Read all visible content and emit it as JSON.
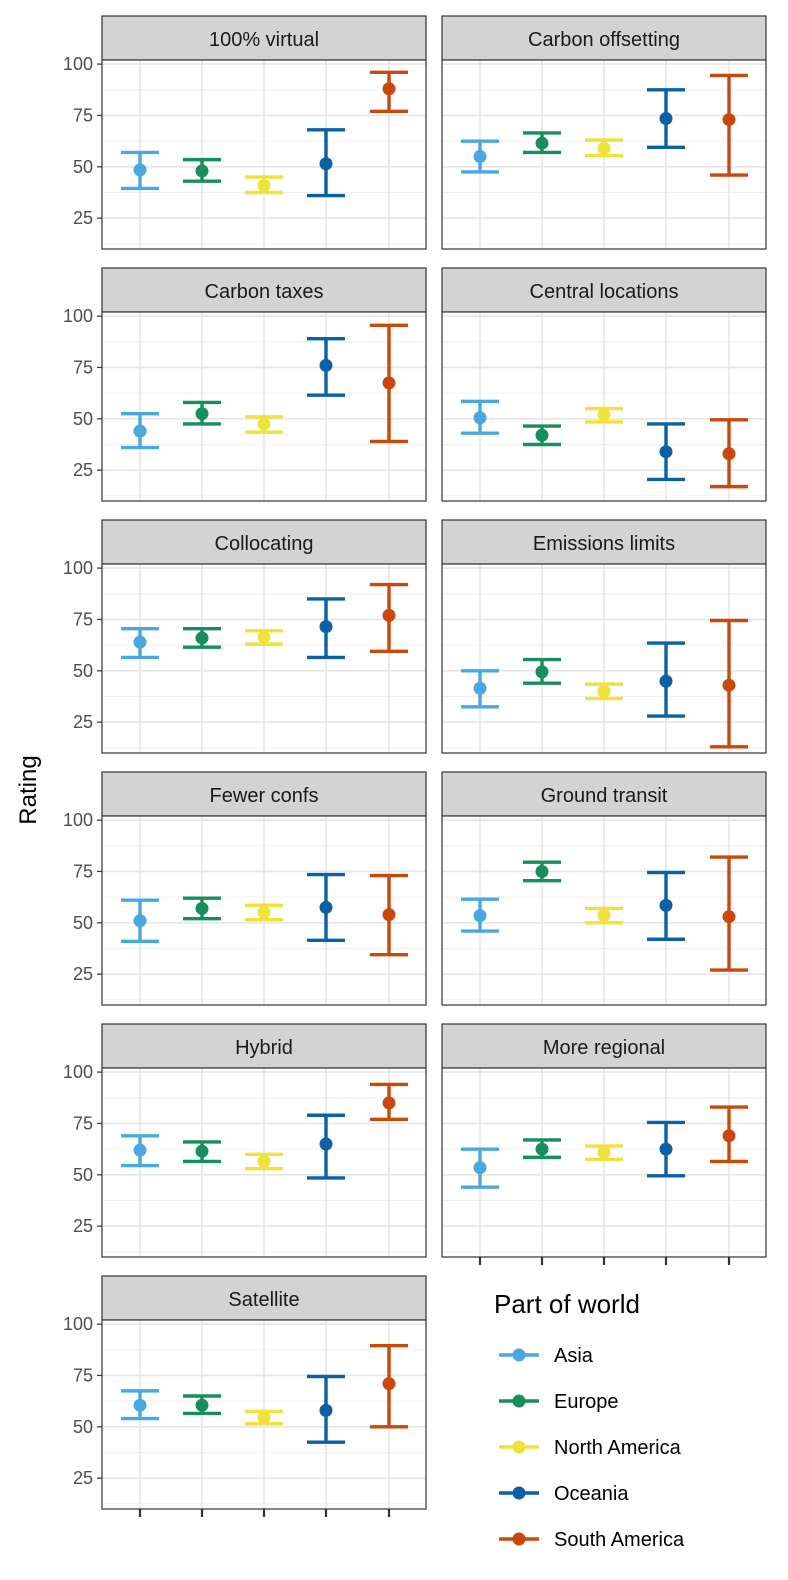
{
  "chart_data": {
    "type": "errorbar-facet",
    "ylabel": "Rating",
    "yticks": [
      25,
      50,
      75,
      100
    ],
    "ylim": [
      10,
      102
    ],
    "grid": true,
    "legend": {
      "title": "Part of world",
      "placement": "bottom-right",
      "entries": [
        "Asia",
        "Europe",
        "North America",
        "Oceania",
        "South America"
      ]
    },
    "series_colors": {
      "Asia": "#4aa7e0",
      "Europe": "#168f5d",
      "North America": "#efe23a",
      "Oceania": "#0b61a4",
      "South America": "#c9480c"
    },
    "x_categories": [
      "Asia",
      "Europe",
      "North America",
      "Oceania",
      "South America"
    ],
    "panels": [
      {
        "title": "100% virtual",
        "points": [
          {
            "group": "Asia",
            "mean": 48.5,
            "low": 39.5,
            "high": 57
          },
          {
            "group": "Europe",
            "mean": 48,
            "low": 43,
            "high": 53.5
          },
          {
            "group": "North America",
            "mean": 41,
            "low": 37.5,
            "high": 45
          },
          {
            "group": "Oceania",
            "mean": 51.5,
            "low": 36,
            "high": 68
          },
          {
            "group": "South America",
            "mean": 88,
            "low": 77,
            "high": 96
          }
        ]
      },
      {
        "title": "Carbon offsetting",
        "points": [
          {
            "group": "Asia",
            "mean": 55,
            "low": 47.5,
            "high": 62.5
          },
          {
            "group": "Europe",
            "mean": 61.5,
            "low": 57,
            "high": 66.5
          },
          {
            "group": "North America",
            "mean": 59,
            "low": 55.5,
            "high": 63
          },
          {
            "group": "Oceania",
            "mean": 73.5,
            "low": 59.5,
            "high": 87.5
          },
          {
            "group": "South America",
            "mean": 73,
            "low": 46,
            "high": 94.5
          }
        ]
      },
      {
        "title": "Carbon taxes",
        "points": [
          {
            "group": "Asia",
            "mean": 44,
            "low": 36,
            "high": 52.5
          },
          {
            "group": "Europe",
            "mean": 52.5,
            "low": 47.5,
            "high": 58
          },
          {
            "group": "North America",
            "mean": 47.5,
            "low": 43.5,
            "high": 51
          },
          {
            "group": "Oceania",
            "mean": 76,
            "low": 61.5,
            "high": 89
          },
          {
            "group": "South America",
            "mean": 67.5,
            "low": 39,
            "high": 95.5
          }
        ]
      },
      {
        "title": "Central locations",
        "points": [
          {
            "group": "Asia",
            "mean": 50.5,
            "low": 43,
            "high": 58.5
          },
          {
            "group": "Europe",
            "mean": 42,
            "low": 37.5,
            "high": 46.5
          },
          {
            "group": "North America",
            "mean": 52,
            "low": 48.5,
            "high": 55
          },
          {
            "group": "Oceania",
            "mean": 34,
            "low": 20.5,
            "high": 47.5
          },
          {
            "group": "South America",
            "mean": 33,
            "low": 17,
            "high": 49.5
          }
        ]
      },
      {
        "title": "Collocating",
        "points": [
          {
            "group": "Asia",
            "mean": 64,
            "low": 56.5,
            "high": 70.5
          },
          {
            "group": "Europe",
            "mean": 66,
            "low": 61.5,
            "high": 70.5
          },
          {
            "group": "North America",
            "mean": 66.5,
            "low": 63,
            "high": 69.5
          },
          {
            "group": "Oceania",
            "mean": 71.5,
            "low": 56.5,
            "high": 85
          },
          {
            "group": "South America",
            "mean": 77,
            "low": 59.5,
            "high": 92
          }
        ]
      },
      {
        "title": "Emissions limits",
        "points": [
          {
            "group": "Asia",
            "mean": 41.5,
            "low": 32.5,
            "high": 50
          },
          {
            "group": "Europe",
            "mean": 49.5,
            "low": 44,
            "high": 55.5
          },
          {
            "group": "North America",
            "mean": 40,
            "low": 36.5,
            "high": 43.5
          },
          {
            "group": "Oceania",
            "mean": 45,
            "low": 28,
            "high": 63.5
          },
          {
            "group": "South America",
            "mean": 43,
            "low": 13,
            "high": 74.5
          }
        ]
      },
      {
        "title": "Fewer confs",
        "points": [
          {
            "group": "Asia",
            "mean": 51,
            "low": 41,
            "high": 61
          },
          {
            "group": "Europe",
            "mean": 57,
            "low": 52,
            "high": 62
          },
          {
            "group": "North America",
            "mean": 55,
            "low": 51.5,
            "high": 58.5
          },
          {
            "group": "Oceania",
            "mean": 57.5,
            "low": 41.5,
            "high": 73.5
          },
          {
            "group": "South America",
            "mean": 54,
            "low": 34.5,
            "high": 73
          }
        ]
      },
      {
        "title": "Ground transit",
        "points": [
          {
            "group": "Asia",
            "mean": 53.5,
            "low": 46,
            "high": 61.5
          },
          {
            "group": "Europe",
            "mean": 75,
            "low": 70.5,
            "high": 79.5
          },
          {
            "group": "North America",
            "mean": 53.5,
            "low": 50,
            "high": 57
          },
          {
            "group": "Oceania",
            "mean": 58.5,
            "low": 42,
            "high": 74.5
          },
          {
            "group": "South America",
            "mean": 53,
            "low": 27,
            "high": 82
          }
        ]
      },
      {
        "title": "Hybrid",
        "points": [
          {
            "group": "Asia",
            "mean": 62,
            "low": 54.5,
            "high": 69
          },
          {
            "group": "Europe",
            "mean": 61.5,
            "low": 56.5,
            "high": 66
          },
          {
            "group": "North America",
            "mean": 56.5,
            "low": 53,
            "high": 60
          },
          {
            "group": "Oceania",
            "mean": 65,
            "low": 48.5,
            "high": 79
          },
          {
            "group": "South America",
            "mean": 85,
            "low": 77,
            "high": 94
          }
        ]
      },
      {
        "title": "More regional",
        "points": [
          {
            "group": "Asia",
            "mean": 53.5,
            "low": 44,
            "high": 62.5
          },
          {
            "group": "Europe",
            "mean": 62.5,
            "low": 58.5,
            "high": 67
          },
          {
            "group": "North America",
            "mean": 61,
            "low": 57.5,
            "high": 64
          },
          {
            "group": "Oceania",
            "mean": 62.5,
            "low": 49.5,
            "high": 75.5
          },
          {
            "group": "South America",
            "mean": 69,
            "low": 56.5,
            "high": 83
          }
        ]
      },
      {
        "title": "Satellite",
        "points": [
          {
            "group": "Asia",
            "mean": 60.5,
            "low": 54,
            "high": 67.5
          },
          {
            "group": "Europe",
            "mean": 60.5,
            "low": 56.5,
            "high": 65
          },
          {
            "group": "North America",
            "mean": 54.5,
            "low": 51.5,
            "high": 57.5
          },
          {
            "group": "Oceania",
            "mean": 58,
            "low": 42.5,
            "high": 74.5
          },
          {
            "group": "South America",
            "mean": 71,
            "low": 50,
            "high": 89.5
          }
        ]
      }
    ]
  }
}
